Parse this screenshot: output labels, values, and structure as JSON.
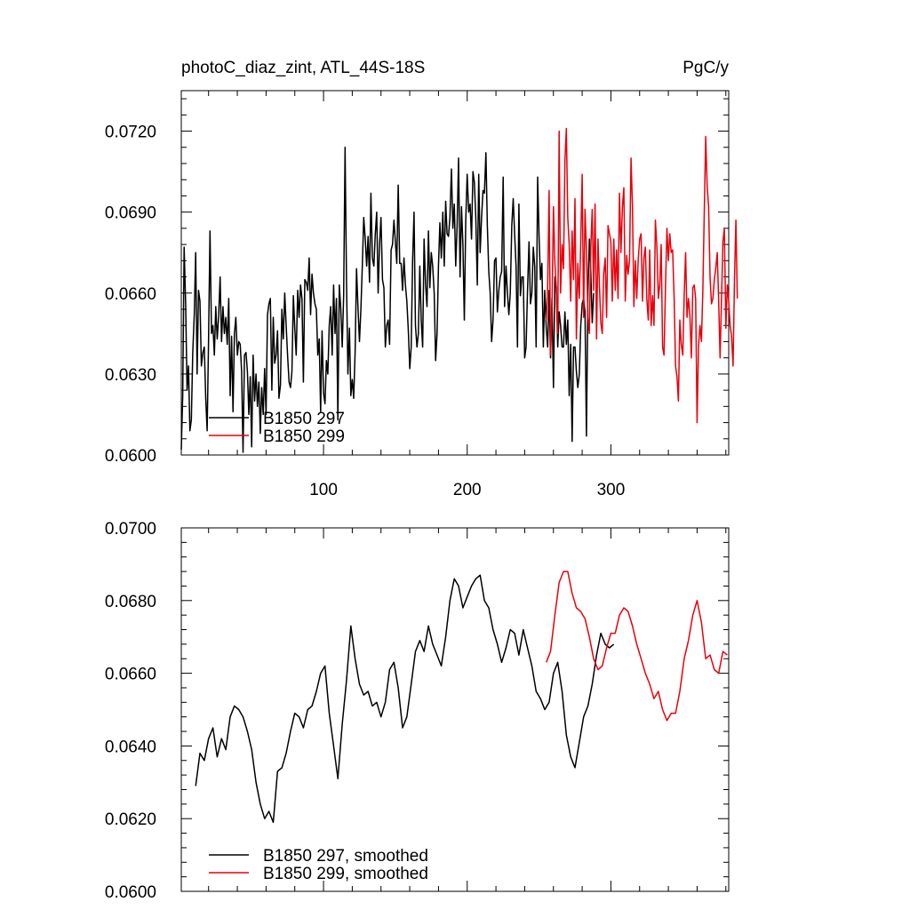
{
  "header": {
    "title": "photoC_diaz_zint, ATL_44S-18S",
    "units": "PgC/y"
  },
  "colors": {
    "run_297": "#000000",
    "run_299": "#e8000b"
  },
  "chart_data": [
    {
      "type": "line",
      "panel": "top",
      "xlim": [
        1,
        382
      ],
      "ylim": [
        0.06,
        0.0735
      ],
      "x_ticks": [
        100,
        200,
        300
      ],
      "x_tick_labels": [
        "100",
        "200",
        "300"
      ],
      "y_ticks": [
        0.06,
        0.063,
        0.066,
        0.069,
        0.072
      ],
      "y_tick_labels": [
        "0.0600",
        "0.0630",
        "0.0660",
        "0.0690",
        "0.0720"
      ],
      "legend": [
        "B1850 297",
        "B1850 299"
      ],
      "legend_position": "bottom-left",
      "series": [
        {
          "name": "B1850 297",
          "color": "#000000",
          "x_start": 1,
          "values": [
            0.0602,
            0.0622,
            0.0677,
            0.0656,
            0.0624,
            0.0633,
            0.0609,
            0.0613,
            0.0638,
            0.0652,
            0.0675,
            0.063,
            0.0661,
            0.0657,
            0.0633,
            0.0638,
            0.064,
            0.0621,
            0.0609,
            0.0643,
            0.0683,
            0.0645,
            0.0648,
            0.0637,
            0.0655,
            0.0643,
            0.0651,
            0.0666,
            0.0642,
            0.0655,
            0.0645,
            0.0651,
            0.0641,
            0.0658,
            0.0622,
            0.0644,
            0.0616,
            0.0645,
            0.0651,
            0.0637,
            0.0642,
            0.0641,
            0.0631,
            0.0601,
            0.0637,
            0.0638,
            0.0631,
            0.0615,
            0.0629,
            0.0603,
            0.0637,
            0.062,
            0.063,
            0.0618,
            0.0627,
            0.0608,
            0.0625,
            0.0615,
            0.0632,
            0.0615,
            0.0652,
            0.0656,
            0.0658,
            0.0624,
            0.0651,
            0.0634,
            0.0637,
            0.0646,
            0.0621,
            0.0626,
            0.0654,
            0.0643,
            0.066,
            0.0648,
            0.0637,
            0.0627,
            0.0625,
            0.0631,
            0.0659,
            0.0647,
            0.0637,
            0.0661,
            0.0651,
            0.0663,
            0.0658,
            0.0627,
            0.0665,
            0.0664,
            0.0661,
            0.0673,
            0.0652,
            0.0667,
            0.066,
            0.0656,
            0.0654,
            0.0637,
            0.0643,
            0.0616,
            0.0646,
            0.0623,
            0.0619,
            0.0635,
            0.063,
            0.0648,
            0.0655,
            0.0637,
            0.0663,
            0.0645,
            0.0658,
            0.0613,
            0.0663,
            0.0654,
            0.064,
            0.0659,
            0.0714,
            0.0665,
            0.063,
            0.0647,
            0.0622,
            0.0628,
            0.0621,
            0.0638,
            0.0669,
            0.0654,
            0.0642,
            0.0654,
            0.067,
            0.0688,
            0.068,
            0.067,
            0.0681,
            0.0664,
            0.0697,
            0.0673,
            0.067,
            0.0682,
            0.069,
            0.066,
            0.0678,
            0.0688,
            0.0665,
            0.0662,
            0.064,
            0.0648,
            0.065,
            0.0641,
            0.0676,
            0.0678,
            0.0687,
            0.0679,
            0.0671,
            0.07,
            0.0671,
            0.0671,
            0.0661,
            0.0673,
            0.0663,
            0.0657,
            0.0646,
            0.0632,
            0.064,
            0.0672,
            0.069,
            0.0648,
            0.064,
            0.0645,
            0.067,
            0.065,
            0.064,
            0.068,
            0.0663,
            0.0655,
            0.0683,
            0.0662,
            0.0675,
            0.067,
            0.066,
            0.0635,
            0.0645,
            0.067,
            0.0686,
            0.0673,
            0.069,
            0.067,
            0.0694,
            0.0682,
            0.0681,
            0.0688,
            0.0706,
            0.0684,
            0.0693,
            0.067,
            0.0685,
            0.071,
            0.0666,
            0.0692,
            0.0678,
            0.065,
            0.0687,
            0.0704,
            0.069,
            0.0693,
            0.068,
            0.0705,
            0.0701,
            0.0688,
            0.0663,
            0.0704,
            0.0675,
            0.0688,
            0.0698,
            0.0697,
            0.0712,
            0.0685,
            0.0668,
            0.066,
            0.0642,
            0.065,
            0.0672,
            0.0673,
            0.0653,
            0.0661,
            0.0666,
            0.0668,
            0.0703,
            0.0655,
            0.067,
            0.066,
            0.0652,
            0.066,
            0.0685,
            0.0695,
            0.0682,
            0.067,
            0.064,
            0.0693,
            0.0659,
            0.0666,
            0.0666,
            0.0636,
            0.064,
            0.0661,
            0.0679,
            0.0656,
            0.066,
            0.0677,
            0.067,
            0.064,
            0.0703,
            0.0681,
            0.0665,
            0.0671,
            0.064,
            0.0661,
            0.0647,
            0.064,
            0.0661,
            0.0636,
            0.0658,
            0.0625,
            0.0666,
            0.0662,
            0.064,
            0.0653,
            0.0648,
            0.064,
            0.064,
            0.0653,
            0.0641,
            0.065,
            0.0622,
            0.0641,
            0.0605,
            0.064,
            0.064,
            0.0631,
            0.0625,
            0.063,
            0.0648,
            0.0656,
            0.0658,
            0.0653,
            0.0607,
            0.066,
            0.068,
            0.0668,
            0.0649,
            0.066
          ]
        },
        {
          "name": "B1850 299",
          "color": "#e8000b",
          "x_start": 255,
          "values": [
            0.065,
            0.0663,
            0.0698,
            0.0637,
            0.0654,
            0.0692,
            0.0671,
            0.0662,
            0.0645,
            0.072,
            0.066,
            0.0678,
            0.0669,
            0.0709,
            0.0721,
            0.0688,
            0.0678,
            0.0657,
            0.0683,
            0.0665,
            0.0695,
            0.0643,
            0.0671,
            0.0658,
            0.0679,
            0.0704,
            0.0651,
            0.0691,
            0.0676,
            0.0651,
            0.0645,
            0.0677,
            0.0691,
            0.0661,
            0.0693,
            0.0643,
            0.068,
            0.0663,
            0.0649,
            0.0645,
            0.0667,
            0.0673,
            0.0651,
            0.0685,
            0.0682,
            0.0679,
            0.0657,
            0.068,
            0.0661,
            0.0676,
            0.0658,
            0.0697,
            0.0675,
            0.0692,
            0.0699,
            0.0657,
            0.0674,
            0.0667,
            0.0672,
            0.071,
            0.0692,
            0.0655,
            0.0672,
            0.0658,
            0.0672,
            0.068,
            0.0682,
            0.0657,
            0.0673,
            0.0677,
            0.0658,
            0.065,
            0.0676,
            0.0648,
            0.0659,
            0.0648,
            0.0687,
            0.0677,
            0.0658,
            0.0663,
            0.0678,
            0.064,
            0.0637,
            0.0663,
            0.0684,
            0.0672,
            0.0682,
            0.0675,
            0.0676,
            0.0658,
            0.0633,
            0.0629,
            0.062,
            0.065,
            0.0641,
            0.0637,
            0.0659,
            0.0675,
            0.0651,
            0.0658,
            0.0652,
            0.0636,
            0.0662,
            0.0663,
            0.0658,
            0.0612,
            0.064,
            0.0648,
            0.0642,
            0.0661,
            0.069,
            0.0718,
            0.07,
            0.0692,
            0.0666,
            0.0656,
            0.0658,
            0.0665,
            0.0669,
            0.0675,
            0.0657,
            0.0636,
            0.0658,
            0.0679,
            0.0684,
            0.0647,
            0.0663,
            0.0657,
            0.0648,
            0.0644,
            0.0633,
            0.0665,
            0.0687,
            0.0658
          ]
        }
      ]
    },
    {
      "type": "line",
      "panel": "bottom",
      "xlim": [
        1,
        382
      ],
      "ylim": [
        0.06,
        0.07
      ],
      "y_ticks": [
        0.06,
        0.062,
        0.064,
        0.066,
        0.068,
        0.07
      ],
      "y_tick_labels": [
        "0.0600",
        "0.0620",
        "0.0640",
        "0.0660",
        "0.0680",
        "0.0700"
      ],
      "legend": [
        "B1850 297, smoothed",
        "B1850 299, smoothed"
      ],
      "legend_position": "bottom-left",
      "series": [
        {
          "name": "B1850 297, smoothed",
          "color": "#000000",
          "x": [
            11,
            14,
            17,
            20,
            23,
            26,
            29,
            32,
            35,
            38,
            41,
            44,
            47,
            50,
            53,
            56,
            59,
            62,
            65,
            68,
            71,
            74,
            77,
            80,
            83,
            86,
            89,
            92,
            95,
            98,
            101,
            104,
            107,
            110,
            113,
            116,
            119,
            122,
            125,
            128,
            131,
            134,
            137,
            140,
            143,
            146,
            149,
            152,
            155,
            158,
            161,
            164,
            167,
            170,
            173,
            176,
            179,
            182,
            185,
            188,
            191,
            194,
            197,
            200,
            203,
            206,
            209,
            212,
            215,
            218,
            221,
            224,
            227,
            230,
            233,
            236,
            239,
            242,
            245,
            248,
            251,
            254,
            257,
            260,
            263,
            266,
            269,
            272,
            275,
            278,
            281,
            284,
            287,
            290,
            293,
            296,
            299,
            302
          ],
          "values": [
            0.0629,
            0.0638,
            0.0636,
            0.0642,
            0.0645,
            0.0637,
            0.0642,
            0.0639,
            0.0648,
            0.0651,
            0.065,
            0.0648,
            0.0644,
            0.0639,
            0.063,
            0.0624,
            0.062,
            0.0622,
            0.0619,
            0.0633,
            0.0634,
            0.0638,
            0.0644,
            0.0649,
            0.0648,
            0.0645,
            0.065,
            0.0651,
            0.0655,
            0.066,
            0.0662,
            0.0649,
            0.064,
            0.0631,
            0.0646,
            0.0658,
            0.0673,
            0.0664,
            0.0657,
            0.0654,
            0.0655,
            0.0651,
            0.0652,
            0.0648,
            0.0652,
            0.0661,
            0.0663,
            0.0656,
            0.0645,
            0.0648,
            0.0657,
            0.0666,
            0.0669,
            0.0666,
            0.0673,
            0.0668,
            0.0665,
            0.0662,
            0.067,
            0.068,
            0.0686,
            0.0684,
            0.0678,
            0.0681,
            0.0684,
            0.0686,
            0.0687,
            0.068,
            0.0678,
            0.0672,
            0.0668,
            0.0663,
            0.0667,
            0.0672,
            0.0671,
            0.0665,
            0.0672,
            0.0667,
            0.0662,
            0.0655,
            0.0653,
            0.065,
            0.0652,
            0.066,
            0.0663,
            0.0655,
            0.0643,
            0.0637,
            0.0634,
            0.0641,
            0.0648,
            0.0651,
            0.0657,
            0.0665,
            0.0671,
            0.0668,
            0.0667,
            0.0668
          ]
        },
        {
          "name": "B1850 299, smoothed",
          "color": "#e8000b",
          "x": [
            255,
            258,
            261,
            264,
            267,
            270,
            273,
            276,
            279,
            282,
            285,
            288,
            291,
            294,
            297,
            300,
            303,
            306,
            309,
            312,
            315,
            318,
            321,
            324,
            327,
            330,
            333,
            336,
            339,
            342,
            345,
            348,
            351,
            354,
            357,
            360,
            363,
            366,
            369,
            372,
            375,
            378,
            381
          ],
          "values": [
            0.0663,
            0.0666,
            0.0676,
            0.0685,
            0.0688,
            0.0688,
            0.0682,
            0.0678,
            0.0677,
            0.0675,
            0.067,
            0.0664,
            0.0661,
            0.0662,
            0.0667,
            0.0671,
            0.0671,
            0.0676,
            0.0678,
            0.0677,
            0.0673,
            0.0668,
            0.0664,
            0.066,
            0.0657,
            0.0653,
            0.0655,
            0.065,
            0.0647,
            0.0649,
            0.0649,
            0.0655,
            0.0664,
            0.0669,
            0.0676,
            0.068,
            0.0674,
            0.0664,
            0.0665,
            0.0661,
            0.066,
            0.0666,
            0.0665
          ]
        }
      ]
    }
  ]
}
